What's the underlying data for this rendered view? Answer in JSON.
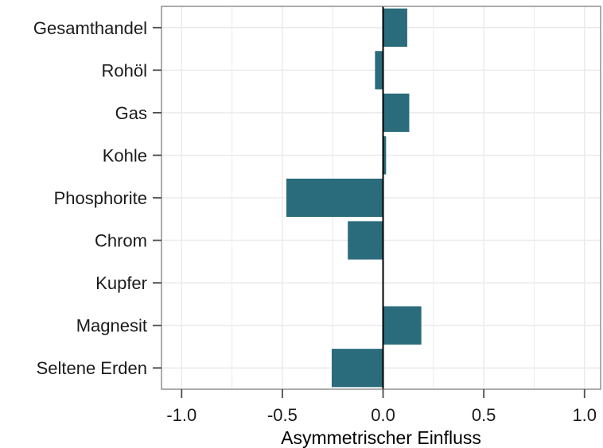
{
  "chart_data": {
    "type": "bar",
    "orientation": "horizontal",
    "categories": [
      "Gesamthandel",
      "Rohöl",
      "Gas",
      "Kohle",
      "Phosphorite",
      "Chrom",
      "Kupfer",
      "Magnesit",
      "Seltene Erden"
    ],
    "values": [
      0.12,
      -0.04,
      0.13,
      0.015,
      -0.48,
      -0.175,
      0.0,
      0.19,
      -0.255
    ],
    "title": "",
    "xlabel": "Asymmetrischer Einfluss",
    "ylabel": "",
    "xlim": [
      -1.1,
      1.08
    ],
    "xticks": [
      -1.0,
      -0.5,
      0.0,
      0.5,
      1.0
    ],
    "xtick_labels": [
      "-1.0",
      "-0.5",
      "0.0",
      "0.5",
      "1.0"
    ],
    "grid": true,
    "bar_color": "#2a6b7c",
    "zero_line_color": "#000000",
    "grid_color": "#ebebeb"
  }
}
